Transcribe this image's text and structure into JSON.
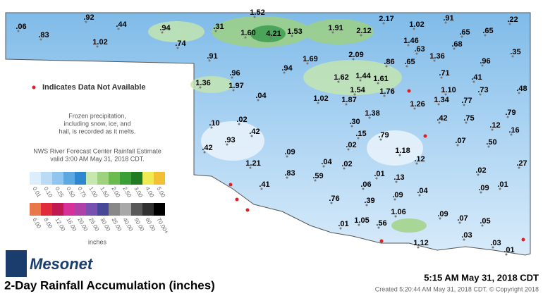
{
  "legend": {
    "not_available": "Indicates Data Not Available",
    "frozen_note": [
      "Frozen precipitation,",
      "including snow, ice, and",
      "hail, is recorded as it melts."
    ],
    "source_note": [
      "NWS River Forecast Center Rainfall Estimate",
      "valid 3:00 AM May 31, 2018 CDT."
    ],
    "scale_top": [
      {
        "label": "0.01",
        "color": "#dcedfb"
      },
      {
        "label": "0.10",
        "color": "#b9dbf5"
      },
      {
        "label": "0.25",
        "color": "#8fc5ef"
      },
      {
        "label": "0.50",
        "color": "#5ea8e2"
      },
      {
        "label": "0.75",
        "color": "#2f87d0"
      },
      {
        "label": "1.00",
        "color": "#c6e7ad"
      },
      {
        "label": "1.50",
        "color": "#9fd27e"
      },
      {
        "label": "2.00",
        "color": "#6cbb4e"
      },
      {
        "label": "2.50",
        "color": "#3c9e36"
      },
      {
        "label": "3.00",
        "color": "#1f7a22"
      },
      {
        "label": "4.00",
        "color": "#eeea52"
      },
      {
        "label": "5.00",
        "color": "#f2c032"
      }
    ],
    "scale_bottom": [
      {
        "label": "6.00",
        "color": "#e8784a"
      },
      {
        "label": "8.00",
        "color": "#e02c3a"
      },
      {
        "label": "12.00",
        "color": "#c01850"
      },
      {
        "label": "16.00",
        "color": "#d8309a"
      },
      {
        "label": "20.00",
        "color": "#b040a8"
      },
      {
        "label": "25.00",
        "color": "#7850b0"
      },
      {
        "label": "30.00",
        "color": "#484898"
      },
      {
        "label": "35.00",
        "color": "#888888"
      },
      {
        "label": "40.00",
        "color": "#a8a8a8"
      },
      {
        "label": "50.00",
        "color": "#585858"
      },
      {
        "label": "60.00",
        "color": "#303030"
      },
      {
        "label": "70.00+",
        "color": "#000000"
      }
    ],
    "units": "inches"
  },
  "brand": "Mesonet",
  "title": "2-Day Rainfall Accumulation (inches)",
  "timestamp": "5:15 AM May 31, 2018 CDT",
  "created": "Created 5:20:44 AM May 31, 2018 CDT. © Copyright 2018",
  "stations": [
    ".06",
    ".92",
    ".44",
    ".83",
    "1.02",
    ".94",
    ".74",
    ".31",
    "1.52",
    "1.60",
    "4.21",
    "1.53",
    "1.91",
    "2.12",
    "2.17",
    "1.02",
    ".91",
    ".22",
    ".65",
    ".65",
    "1.46",
    ".68",
    ".63",
    ".35",
    ".91",
    "1.69",
    "2.09",
    ".86",
    ".65",
    "1.36",
    ".96",
    ".96",
    ".94",
    ".71",
    ".41",
    "1.36",
    "1.97",
    "1.62",
    "1.44",
    "1.61",
    "1.10",
    ".73",
    ".48",
    ".04",
    "1.02",
    "1.87",
    "1.54",
    "1.76",
    "1.34",
    ".77",
    "1.26",
    "1.38",
    ".30",
    ".79",
    ".02",
    ".10",
    ".42",
    ".75",
    ".12",
    ".16",
    ".42",
    ".15",
    ".79",
    ".93",
    ".07",
    ".50",
    ".42",
    ".02",
    ".09",
    "1.18",
    ".12",
    ".04",
    ".02",
    "1.21",
    ".27",
    ".83",
    ".59",
    ".01",
    ".13",
    ".02",
    ".41",
    ".06",
    ".09",
    ".01",
    ".04",
    ".76",
    ".39",
    ".09",
    "1.06",
    ".09",
    ".07",
    ".05",
    ".01",
    "1.05",
    ".56",
    "1.12",
    ".03",
    ".03",
    ".01"
  ]
}
